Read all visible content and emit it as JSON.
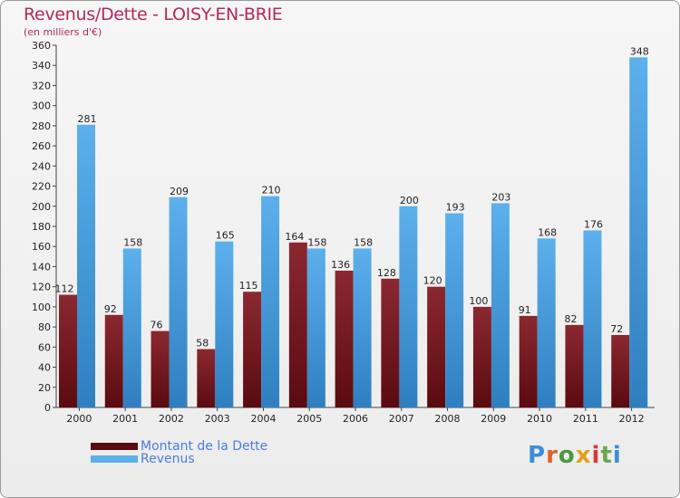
{
  "title": "Revenus/Dette - LOISY-EN-BRIE",
  "subtitle": "(en milliers d'€)",
  "logo_text": "Proxiti",
  "colors": {
    "dette_top": "#8b2830",
    "dette_bottom": "#5a0b10",
    "revenus_top": "#5cb0ec",
    "revenus_bottom": "#2f7fc0",
    "text_dark": "#222222",
    "title": "#b3285e",
    "legend_text": "#4a7de0"
  },
  "chart_data": {
    "type": "bar",
    "title": "Revenus/Dette - LOISY-EN-BRIE",
    "subtitle": "(en milliers d'€)",
    "categories": [
      "2000",
      "2001",
      "2002",
      "2003",
      "2004",
      "2005",
      "2006",
      "2007",
      "2008",
      "2009",
      "2010",
      "2011",
      "2012"
    ],
    "series": [
      {
        "name": "Montant de la Dette",
        "values": [
          112,
          92,
          76,
          58,
          115,
          164,
          136,
          128,
          120,
          100,
          91,
          82,
          72
        ]
      },
      {
        "name": "Revenus",
        "values": [
          281,
          158,
          209,
          165,
          210,
          158,
          158,
          200,
          193,
          203,
          168,
          176,
          348
        ]
      }
    ],
    "ylim": [
      0,
      360
    ],
    "ytick_step": 20,
    "grid": false,
    "legend": "bottom-left"
  }
}
